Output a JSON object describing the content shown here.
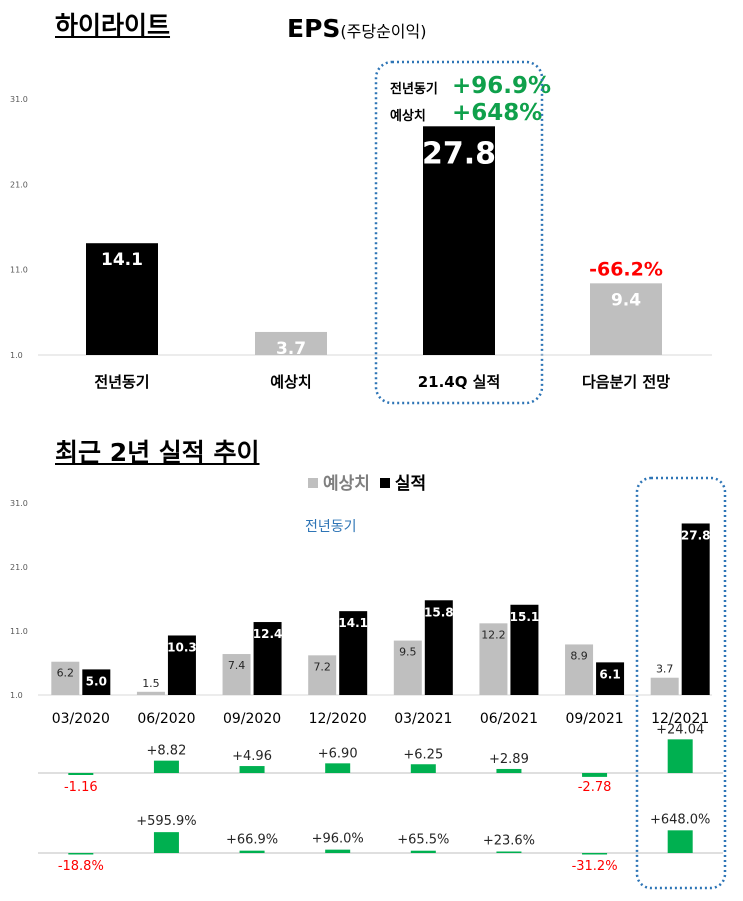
{
  "header": {
    "section1_title": "하이라이트",
    "section2_title": "최근 2년 실적 추이",
    "eps_main": "EPS",
    "eps_sub": "(주당순이익)",
    "callout_yoy_label": "전년동기",
    "callout_yoy_value": "+96.9%",
    "callout_est_label": "예상치",
    "callout_est_value": "+648%",
    "legend_est": "예상치",
    "legend_act": "실적",
    "yoy_note": "전년동기"
  },
  "colors": {
    "actual": "#000000",
    "estimate": "#bfbfbf",
    "positive": "#00b050",
    "negative": "#ff0000",
    "highlight": "#2e75b6"
  },
  "chart_data": [
    {
      "type": "bar",
      "categories": [
        "전년동기",
        "예상치",
        "21.4Q 실적",
        "다음분기 전망"
      ],
      "values": [
        14.1,
        3.7,
        27.8,
        9.4
      ],
      "value_labels": [
        "14.1",
        "3.7",
        "27.8",
        "9.4"
      ],
      "bar_colors": [
        "actual",
        "estimate",
        "actual",
        "estimate"
      ],
      "yticks": [
        "1.0",
        "11.0",
        "21.0",
        "31.0"
      ],
      "ylim": [
        1,
        31
      ],
      "annotations": [
        {
          "category": "다음분기 전망",
          "text": "-66.2%",
          "color": "negative"
        }
      ]
    },
    {
      "type": "bar",
      "categories": [
        "03/2020",
        "06/2020",
        "09/2020",
        "12/2020",
        "03/2021",
        "06/2021",
        "09/2021",
        "12/2021"
      ],
      "series": [
        {
          "name": "예상치",
          "values": [
            6.2,
            1.5,
            7.4,
            7.2,
            9.5,
            12.2,
            8.9,
            3.7
          ]
        },
        {
          "name": "실적",
          "values": [
            5.0,
            10.3,
            12.4,
            14.1,
            15.8,
            15.1,
            6.1,
            27.8
          ]
        }
      ],
      "estimate_labels": [
        "6.2",
        "1.5",
        "7.4",
        "7.2",
        "9.5",
        "12.2",
        "8.9",
        "3.7"
      ],
      "actual_labels": [
        "5.0",
        "10.3",
        "12.4",
        "14.1",
        "15.8",
        "15.1",
        "6.1",
        "27.8"
      ],
      "yticks": [
        "1.0",
        "11.0",
        "21.0",
        "31.0"
      ],
      "ylim": [
        1,
        31
      ],
      "legend": "top-center"
    },
    {
      "type": "bar",
      "categories": [
        "03/2020",
        "06/2020",
        "09/2020",
        "12/2020",
        "03/2021",
        "06/2021",
        "09/2021",
        "12/2021"
      ],
      "values": [
        -1.16,
        8.82,
        4.96,
        6.9,
        6.25,
        2.89,
        -2.78,
        24.04
      ],
      "labels": [
        "-1.16",
        "+8.82",
        "+4.96",
        "+6.90",
        "+6.25",
        "+2.89",
        "-2.78",
        "+24.04"
      ]
    },
    {
      "type": "bar",
      "categories": [
        "03/2020",
        "06/2020",
        "09/2020",
        "12/2020",
        "03/2021",
        "06/2021",
        "09/2021",
        "12/2021"
      ],
      "values": [
        -18.8,
        595.9,
        66.9,
        96.0,
        65.5,
        23.6,
        -31.2,
        648.0
      ],
      "labels": [
        "-18.8%",
        "+595.9%",
        "+66.9%",
        "+96.0%",
        "+65.5%",
        "+23.6%",
        "-31.2%",
        "+648.0%"
      ]
    }
  ]
}
